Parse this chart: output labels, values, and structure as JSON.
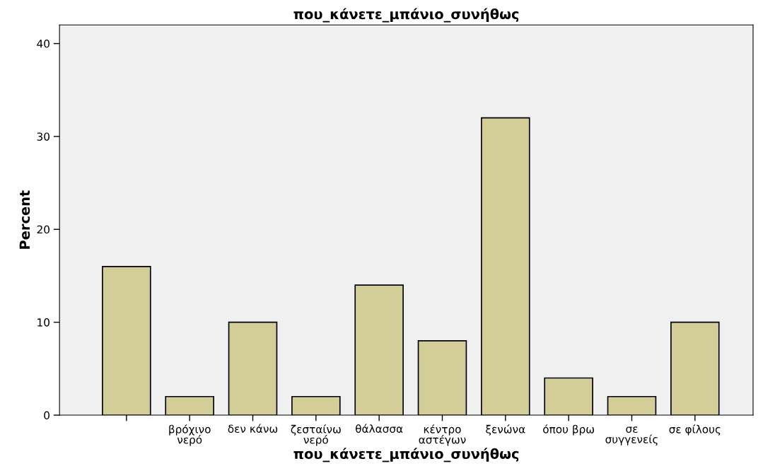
{
  "chart_data": {
    "type": "bar",
    "title": "που_κάνετε_μπάνιο_συνήθως",
    "xlabel": "που_κάνετε_μπάνιο_συνήθως",
    "ylabel": "Percent",
    "categories": [
      null,
      "βρόχινο\nνερό",
      "δεν κάνω",
      "ζεσταίνω\nνερό",
      "θάλασσα",
      "κέντρο\nαστέγων",
      "ξενώνα",
      "όπου βρω",
      "σε\nσυγγενείς",
      "σε φίλους"
    ],
    "values": [
      16,
      2,
      10,
      2,
      14,
      8,
      32,
      4,
      2,
      10
    ],
    "color": "#d3ce97",
    "ylim": [
      0,
      42
    ],
    "yticks": [
      0,
      10,
      20,
      30,
      40
    ],
    "grid": false,
    "legend": false
  }
}
